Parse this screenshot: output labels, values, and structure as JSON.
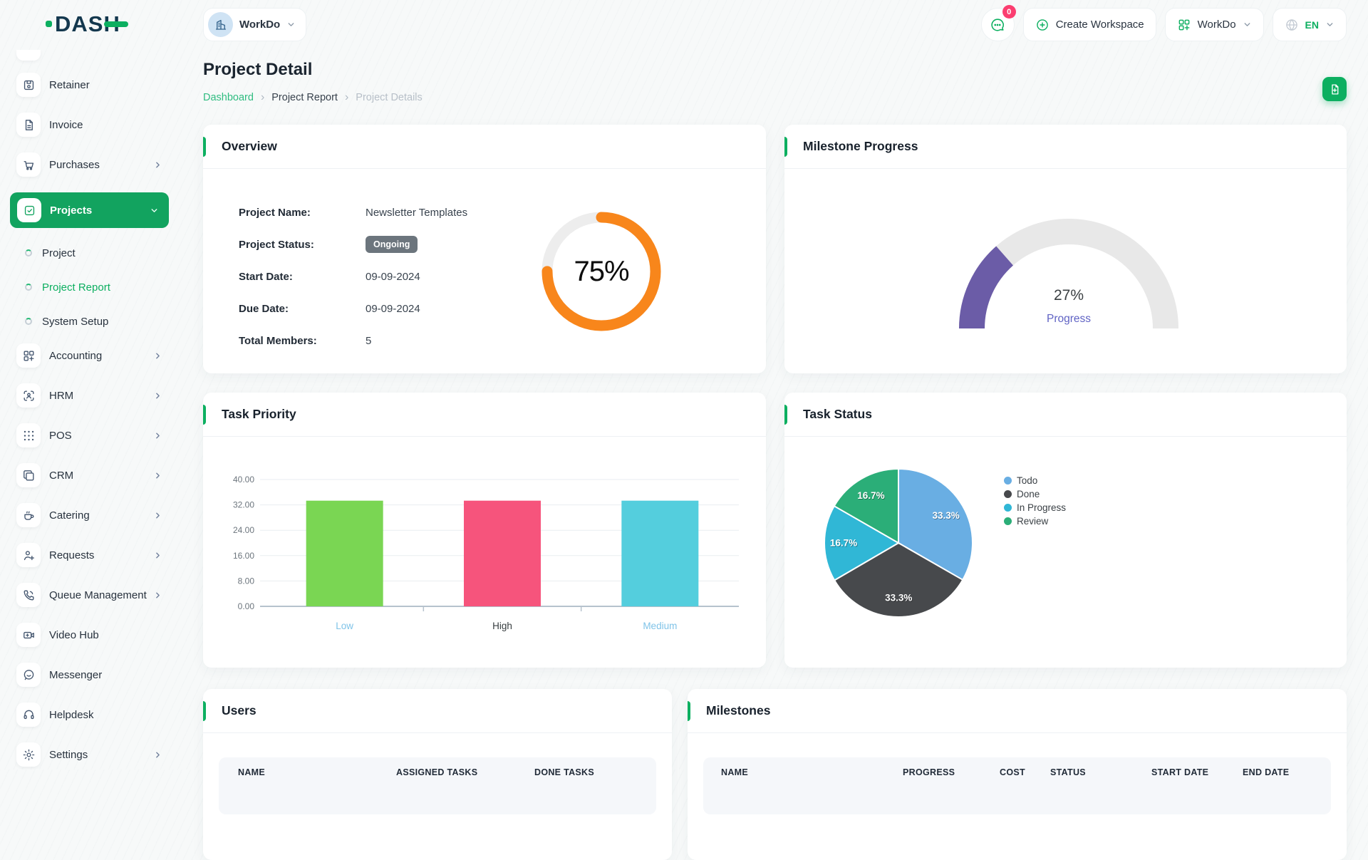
{
  "topbar": {
    "logo_text": "DASH",
    "workspace_label": "WorkDo",
    "chat_badge": "0",
    "create_workspace_label": "Create Workspace",
    "workspace_menu_label": "WorkDo",
    "language": "EN"
  },
  "sidebar": {
    "items": [
      {
        "label": "Retainer",
        "icon": "retainer-icon"
      },
      {
        "label": "Invoice",
        "icon": "invoice-icon"
      },
      {
        "label": "Purchases",
        "icon": "purchases-icon",
        "chevron": "right"
      },
      {
        "label": "Projects",
        "icon": "projects-icon",
        "chevron": "down",
        "active": true
      },
      {
        "label": "Accounting",
        "icon": "accounting-icon",
        "chevron": "right"
      },
      {
        "label": "HRM",
        "icon": "hrm-icon",
        "chevron": "right"
      },
      {
        "label": "POS",
        "icon": "pos-icon",
        "chevron": "right"
      },
      {
        "label": "CRM",
        "icon": "crm-icon",
        "chevron": "right"
      },
      {
        "label": "Catering",
        "icon": "catering-icon",
        "chevron": "right"
      },
      {
        "label": "Requests",
        "icon": "requests-icon",
        "chevron": "right"
      },
      {
        "label": "Queue Management",
        "icon": "queue-icon",
        "chevron": "right"
      },
      {
        "label": "Video Hub",
        "icon": "video-icon"
      },
      {
        "label": "Messenger",
        "icon": "messenger-icon"
      },
      {
        "label": "Helpdesk",
        "icon": "helpdesk-icon"
      },
      {
        "label": "Settings",
        "icon": "settings-icon",
        "chevron": "right"
      }
    ],
    "projects_children": [
      {
        "label": "Project"
      },
      {
        "label": "Project Report",
        "active": true
      },
      {
        "label": "System Setup"
      }
    ]
  },
  "page": {
    "title": "Project Detail",
    "breadcrumb": [
      "Dashboard",
      "Project Report",
      "Project Details"
    ]
  },
  "overview": {
    "title": "Overview",
    "fields": [
      {
        "label": "Project Name:",
        "value": "Newsletter Templates"
      },
      {
        "label": "Project Status:",
        "value": "Ongoing",
        "badge": true
      },
      {
        "label": "Start Date:",
        "value": "09-09-2024"
      },
      {
        "label": "Due Date:",
        "value": "09-09-2024"
      },
      {
        "label": "Total Members:",
        "value": "5"
      }
    ]
  },
  "milestone_card": {
    "title": "Milestone Progress"
  },
  "priority_card": {
    "title": "Task Priority"
  },
  "status_card": {
    "title": "Task Status"
  },
  "users_table": {
    "title": "Users",
    "columns": [
      "NAME",
      "ASSIGNED TASKS",
      "DONE TASKS"
    ]
  },
  "milestones_table": {
    "title": "Milestones",
    "columns": [
      "NAME",
      "PROGRESS",
      "COST",
      "STATUS",
      "START DATE",
      "END DATE"
    ]
  },
  "chart_data": [
    {
      "id": "overview-progress",
      "type": "donut-progress",
      "title": "Overview project progress",
      "value": 75,
      "label": "75%",
      "color": "#F8861B",
      "track": "#ededed"
    },
    {
      "id": "milestone-gauge",
      "type": "gauge",
      "title": "Milestone Progress",
      "value": 27,
      "label": "27%",
      "sublabel": "Progress",
      "range": [
        0,
        100
      ],
      "color": "#6B5CA7",
      "track": "#e8e8e8"
    },
    {
      "id": "task-priority",
      "type": "bar",
      "title": "Task Priority",
      "categories": [
        "Low",
        "High",
        "Medium"
      ],
      "values": [
        33.33,
        33.33,
        33.33
      ],
      "bar_colors": [
        "#7AD653",
        "#F6547C",
        "#54CEDD"
      ],
      "category_label_colors": [
        "#7FC3E8",
        "#373D3F",
        "#7FC3E8"
      ],
      "ylim": [
        0,
        40
      ],
      "yticks": [
        "0.00",
        "8.00",
        "16.00",
        "24.00",
        "32.00",
        "40.00"
      ],
      "grid": true
    },
    {
      "id": "task-status",
      "type": "pie",
      "title": "Task Status",
      "labels": [
        "Todo",
        "Done",
        "In Progress",
        "Review"
      ],
      "values": [
        33.3,
        33.3,
        16.7,
        16.7
      ],
      "slice_labels": [
        "33.3%",
        "33.3%",
        "16.7%",
        "16.7%"
      ],
      "colors": [
        "#69AEE3",
        "#47494C",
        "#30B7D6",
        "#2BAE78"
      ],
      "legend_position": "right"
    }
  ]
}
